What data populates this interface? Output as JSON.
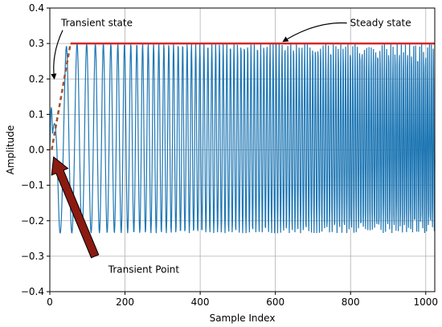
{
  "chart_data": {
    "type": "line",
    "xlabel": "Sample Index",
    "ylabel": "Amplitude",
    "xlim": [
      0,
      1024
    ],
    "ylim": [
      -0.4,
      0.4
    ],
    "grid": true,
    "x_ticks": [
      0,
      200,
      400,
      600,
      800,
      1000
    ],
    "x_tick_labels": [
      "0",
      "200",
      "400",
      "600",
      "800",
      "1000"
    ],
    "y_ticks": [
      -0.4,
      -0.3,
      -0.2,
      -0.1,
      0.0,
      0.1,
      0.2,
      0.3,
      0.4
    ],
    "y_tick_labels": [
      "−0.4",
      "−0.3",
      "−0.2",
      "−0.1",
      "0.0",
      "0.1",
      "0.2",
      "0.3",
      "0.4"
    ],
    "series": [
      {
        "color": "#1f77b4",
        "description_points": [
          {
            "x": 0,
            "y": 0.0
          },
          {
            "x": 5,
            "y": 0.12
          },
          {
            "x": 10,
            "y": -0.14
          },
          {
            "x": 30,
            "y": -0.23
          },
          {
            "x": 45,
            "y": 0.3
          },
          {
            "x": 100,
            "y": 0.3
          },
          {
            "x": 100,
            "y": -0.23
          },
          {
            "x": 1024,
            "y": 0.3
          },
          {
            "x": 1024,
            "y": -0.23
          }
        ],
        "steady_max": 0.3,
        "steady_min": -0.235
      }
    ],
    "reference_lines": [
      {
        "kind": "steady-state-level",
        "y": 0.3,
        "x_start": 55,
        "x_end": 1024,
        "color": "#d62728"
      },
      {
        "kind": "transient-dashed",
        "points": [
          [
            5,
            0.0
          ],
          [
            55,
            0.3
          ]
        ],
        "color": "#a0522d"
      }
    ],
    "annotations": [
      {
        "id": "transient-state",
        "text": "Transient state",
        "x": 30,
        "y": 0.36,
        "arrow_to": [
          12,
          0.2
        ]
      },
      {
        "id": "steady-state",
        "text": "Steady state",
        "x": 880,
        "y": 0.36,
        "arrow_to": [
          620,
          0.305
        ]
      },
      {
        "id": "transient-point",
        "text": "Transient Point",
        "x": 250,
        "y": -0.335,
        "arrow_from": [
          120,
          -0.3
        ],
        "arrow_to": [
          10,
          -0.02
        ]
      }
    ]
  }
}
